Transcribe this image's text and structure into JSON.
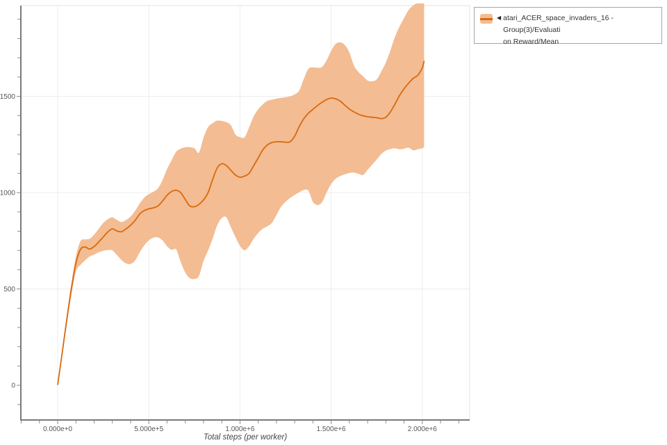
{
  "axes": {
    "x_title": "Total steps (per worker)"
  },
  "legend": {
    "collapse_icon": "◀",
    "line1": "atari_ACER_space_invaders_16 - Group(3)/Evaluati",
    "line2": "on Reward/Mean"
  },
  "colors": {
    "line": "#d9690e",
    "band": "#f3bc92",
    "grid": "#ececec",
    "frame": "#e3e3e3",
    "axis": "#7a7a7a",
    "tick": "#8a8a8a",
    "tick_label": "#555555",
    "legend_border": "#a6a6a6"
  },
  "chart_data": {
    "type": "line",
    "title": "",
    "xlabel": "Total steps (per worker)",
    "ylabel": "",
    "grid": true,
    "legend_position": "top-right",
    "xlim": [
      -202000,
      2260000
    ],
    "ylim": [
      -180,
      1971
    ],
    "x_ticks": [
      0,
      500000,
      1000000,
      1500000,
      2000000
    ],
    "x_tick_labels": [
      "0.000e+0",
      "5.000e+5",
      "1.000e+6",
      "1.500e+6",
      "2.000e+6"
    ],
    "x_minor_step": 100000,
    "y_ticks": [
      0,
      500,
      1000,
      1500
    ],
    "y_tick_labels": [
      "0",
      "500",
      "1000",
      "1500"
    ],
    "y_minor_step": 100,
    "y_gridlines": [
      500,
      1000,
      1500
    ],
    "series": [
      {
        "name": "atari_ACER_space_invaders_16 - Group(3)/Evaluation Reward/Mean",
        "color": "#d9690e",
        "band_color": "#f3bc92",
        "x": [
          0,
          25000,
          50000,
          75000,
          100000,
          125000,
          150000,
          175000,
          200000,
          225000,
          250000,
          275000,
          300000,
          325000,
          350000,
          375000,
          400000,
          425000,
          450000,
          475000,
          500000,
          525000,
          550000,
          575000,
          600000,
          625000,
          650000,
          675000,
          700000,
          725000,
          750000,
          775000,
          800000,
          825000,
          850000,
          875000,
          900000,
          925000,
          950000,
          975000,
          1000000,
          1025000,
          1050000,
          1075000,
          1100000,
          1125000,
          1150000,
          1175000,
          1200000,
          1225000,
          1250000,
          1275000,
          1300000,
          1325000,
          1350000,
          1375000,
          1400000,
          1425000,
          1450000,
          1475000,
          1500000,
          1525000,
          1550000,
          1575000,
          1600000,
          1625000,
          1650000,
          1675000,
          1700000,
          1725000,
          1750000,
          1775000,
          1800000,
          1825000,
          1850000,
          1875000,
          1900000,
          1925000,
          1950000,
          1975000,
          2000000,
          2010000
        ],
        "mean": [
          2,
          170,
          340,
          500,
          633,
          705,
          718,
          707,
          720,
          744,
          770,
          796,
          812,
          801,
          797,
          812,
          831,
          856,
          889,
          907,
          916,
          921,
          931,
          956,
          986,
          1006,
          1012,
          1000,
          964,
          931,
          927,
          939,
          962,
          1000,
          1068,
          1128,
          1150,
          1141,
          1116,
          1092,
          1080,
          1086,
          1100,
          1140,
          1180,
          1222,
          1247,
          1260,
          1264,
          1264,
          1262,
          1264,
          1293,
          1343,
          1383,
          1412,
          1432,
          1452,
          1469,
          1483,
          1491,
          1487,
          1475,
          1454,
          1434,
          1419,
          1407,
          1399,
          1394,
          1391,
          1389,
          1384,
          1391,
          1419,
          1459,
          1504,
          1539,
          1568,
          1593,
          1609,
          1648,
          1684
        ],
        "upper": [
          4,
          185,
          365,
          530,
          668,
          748,
          757,
          760,
          782,
          812,
          842,
          862,
          872,
          858,
          847,
          858,
          876,
          906,
          944,
          974,
          992,
          1005,
          1022,
          1065,
          1122,
          1168,
          1212,
          1228,
          1236,
          1236,
          1230,
          1208,
          1285,
          1340,
          1360,
          1374,
          1372,
          1366,
          1350,
          1302,
          1288,
          1287,
          1338,
          1396,
          1432,
          1458,
          1476,
          1482,
          1488,
          1492,
          1495,
          1500,
          1510,
          1530,
          1590,
          1642,
          1650,
          1648,
          1652,
          1686,
          1736,
          1772,
          1780,
          1766,
          1728,
          1660,
          1626,
          1604,
          1582,
          1578,
          1588,
          1628,
          1675,
          1738,
          1808,
          1862,
          1906,
          1948,
          1972,
          1984,
          1990,
          1992
        ],
        "lower": [
          0,
          155,
          315,
          468,
          590,
          625,
          648,
          668,
          678,
          690,
          698,
          702,
          700,
          676,
          650,
          633,
          630,
          648,
          690,
          726,
          752,
          766,
          768,
          752,
          722,
          703,
          705,
          640,
          585,
          556,
          552,
          568,
          645,
          700,
          760,
          830,
          868,
          872,
          820,
          770,
          724,
          701,
          722,
          760,
          790,
          813,
          825,
          843,
          884,
          926,
          952,
          972,
          988,
          1002,
          1014,
          1010,
          952,
          936,
          950,
          1000,
          1045,
          1072,
          1086,
          1095,
          1102,
          1104,
          1098,
          1092,
          1118,
          1145,
          1172,
          1200,
          1218,
          1226,
          1230,
          1225,
          1228,
          1233,
          1220,
          1225,
          1230,
          1237
        ]
      }
    ]
  }
}
